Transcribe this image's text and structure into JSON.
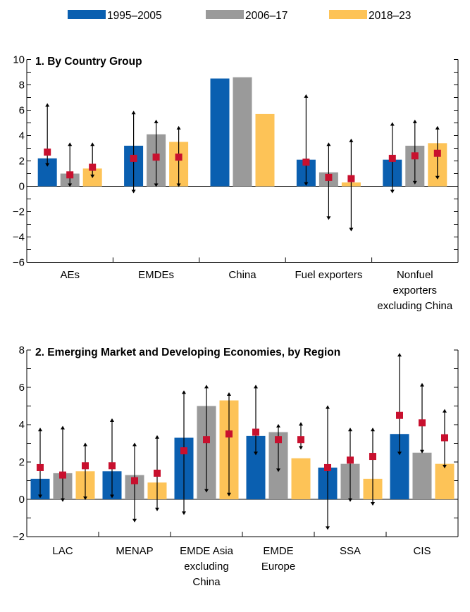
{
  "colors": {
    "series": [
      "#0a5fb0",
      "#9a9a9a",
      "#fdc357"
    ],
    "marker": "#c8102e",
    "whisker": "#000000",
    "axis": "#000000"
  },
  "legend": [
    "1995–2005",
    "2006–17",
    "2018–23"
  ],
  "chart_data": [
    {
      "type": "bar",
      "title": "1. By Country Group",
      "ylim": [
        -6,
        10
      ],
      "yticks": [
        -6,
        -4,
        -2,
        0,
        2,
        4,
        6,
        8,
        10
      ],
      "categories": [
        [
          "AEs"
        ],
        [
          "EMDEs"
        ],
        [
          "China"
        ],
        [
          "Fuel exporters"
        ],
        [
          "Nonfuel",
          "exporters",
          "excluding China"
        ]
      ],
      "series": [
        {
          "name": "1995–2005",
          "values": [
            2.2,
            3.2,
            8.5,
            2.1,
            2.1
          ],
          "marker": [
            2.7,
            2.2,
            null,
            1.9,
            2.2
          ],
          "low": [
            1.6,
            -0.5,
            null,
            0.1,
            -0.5
          ],
          "high": [
            6.5,
            5.9,
            null,
            7.2,
            5.0
          ]
        },
        {
          "name": "2006–17",
          "values": [
            1.0,
            4.1,
            8.6,
            1.1,
            3.2
          ],
          "marker": [
            0.9,
            2.3,
            null,
            0.7,
            2.4
          ],
          "low": [
            0.0,
            0.0,
            null,
            -2.6,
            0.2
          ],
          "high": [
            3.4,
            5.2,
            null,
            3.4,
            5.2
          ]
        },
        {
          "name": "2018–23",
          "values": [
            1.4,
            3.5,
            5.7,
            0.3,
            3.4
          ],
          "marker": [
            1.5,
            2.3,
            null,
            0.6,
            2.6
          ],
          "low": [
            0.7,
            0.0,
            null,
            -3.5,
            0.6
          ],
          "high": [
            3.4,
            4.7,
            null,
            3.7,
            4.7
          ]
        }
      ]
    },
    {
      "type": "bar",
      "title": "2. Emerging Market and Developing Economies, by Region",
      "ylim": [
        -2,
        8
      ],
      "yticks": [
        -2,
        0,
        2,
        4,
        6,
        8
      ],
      "categories": [
        [
          "LAC"
        ],
        [
          "MENAP"
        ],
        [
          "EMDE Asia",
          "excluding",
          "China"
        ],
        [
          "EMDE",
          "Europe"
        ],
        [
          "SSA"
        ],
        [
          "CIS"
        ]
      ],
      "series": [
        {
          "name": "1995–2005",
          "values": [
            1.1,
            1.5,
            3.3,
            3.4,
            1.7,
            3.5
          ],
          "marker": [
            1.7,
            1.8,
            2.6,
            3.6,
            1.7,
            4.5
          ],
          "low": [
            0.1,
            0.1,
            -0.8,
            2.4,
            -1.6,
            2.4
          ],
          "high": [
            3.8,
            4.3,
            5.8,
            6.1,
            5.0,
            7.8
          ]
        },
        {
          "name": "2006–17",
          "values": [
            1.4,
            1.3,
            5.0,
            3.6,
            1.9,
            2.5
          ],
          "marker": [
            1.3,
            1.0,
            3.2,
            3.2,
            2.1,
            4.1
          ],
          "low": [
            -0.1,
            -1.2,
            0.4,
            1.5,
            -0.1,
            2.5
          ],
          "high": [
            3.9,
            3.0,
            6.1,
            4.0,
            3.8,
            6.2
          ]
        },
        {
          "name": "2018–23",
          "values": [
            1.5,
            0.9,
            5.3,
            2.2,
            1.1,
            1.9
          ],
          "marker": [
            1.8,
            1.4,
            3.5,
            3.2,
            2.3,
            3.3
          ],
          "low": [
            0.0,
            -0.6,
            0.2,
            2.7,
            -0.3,
            1.7
          ],
          "high": [
            3.0,
            3.4,
            5.7,
            4.1,
            3.8,
            4.8
          ]
        }
      ]
    }
  ]
}
